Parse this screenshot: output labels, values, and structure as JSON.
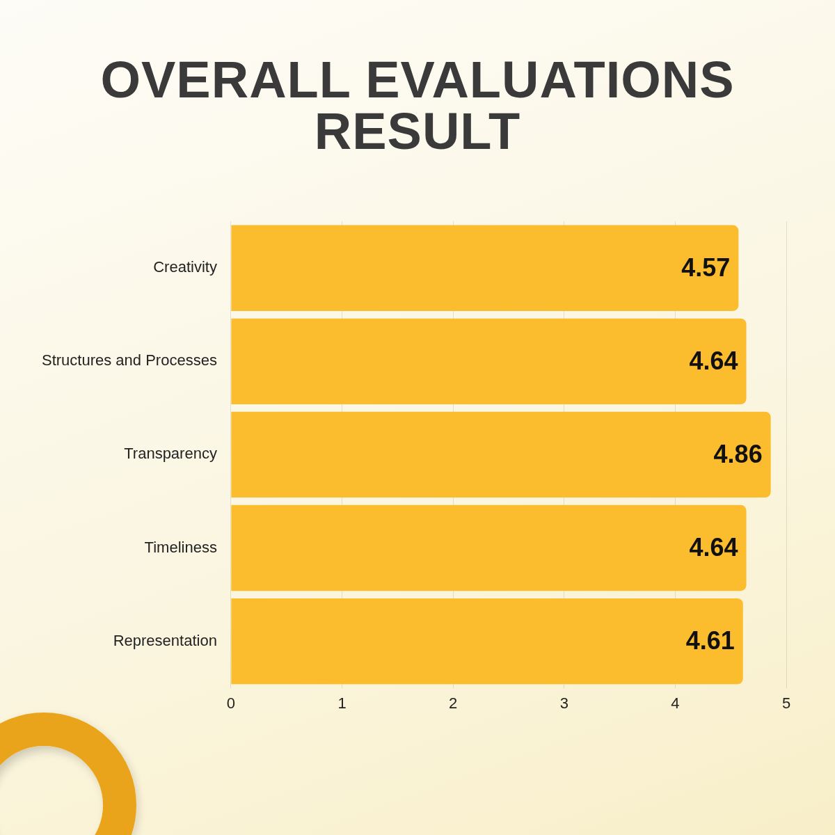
{
  "chart_data": {
    "type": "bar",
    "title": "OVERALL EVALUATIONS RESULT",
    "categories": [
      "Creativity",
      "Structures and Processes",
      "Transparency",
      "Timeliness",
      "Representation"
    ],
    "values": [
      4.57,
      4.64,
      4.86,
      4.64,
      4.61
    ],
    "color": "#fbbc2e",
    "orientation": "horizontal",
    "xlim": [
      0,
      5
    ],
    "xticks": [
      0,
      1,
      2,
      3,
      4,
      5
    ],
    "grid": true,
    "data_labels": true
  }
}
